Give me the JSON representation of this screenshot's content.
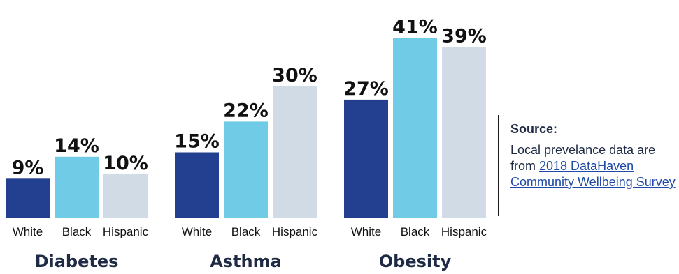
{
  "chart_data": [
    {
      "type": "bar",
      "title": "Diabetes",
      "categories": [
        "White",
        "Black",
        "Hispanic"
      ],
      "values": [
        9,
        14,
        10
      ],
      "value_labels": [
        "9%",
        "14%",
        "10%"
      ],
      "ylim": [
        0,
        45
      ],
      "grid": false,
      "colors": [
        "#22408f",
        "#6fcbe6",
        "#d0dbe6"
      ]
    },
    {
      "type": "bar",
      "title": "Asthma",
      "categories": [
        "White",
        "Black",
        "Hispanic"
      ],
      "values": [
        15,
        22,
        30
      ],
      "value_labels": [
        "15%",
        "22%",
        "30%"
      ],
      "ylim": [
        0,
        45
      ],
      "grid": false,
      "colors": [
        "#22408f",
        "#6fcbe6",
        "#d0dbe6"
      ]
    },
    {
      "type": "bar",
      "title": "Obesity",
      "categories": [
        "White",
        "Black",
        "Hispanic"
      ],
      "values": [
        27,
        41,
        39
      ],
      "value_labels": [
        "27%",
        "41%",
        "39%"
      ],
      "ylim": [
        0,
        45
      ],
      "grid": false,
      "colors": [
        "#22408f",
        "#6fcbe6",
        "#d0dbe6"
      ]
    }
  ],
  "source": {
    "title": "Source:",
    "text": "Local prevelance data are from",
    "link_text": "2018 DataHaven Community Wellbeing Survey"
  }
}
